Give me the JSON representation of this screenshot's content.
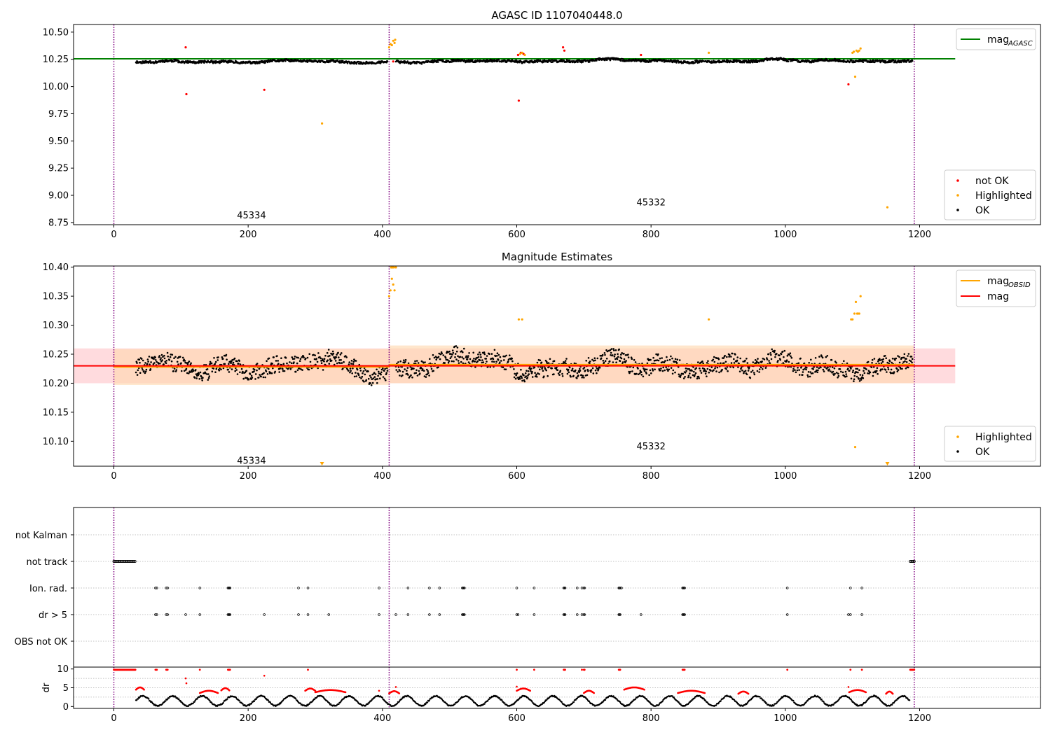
{
  "colors": {
    "ok": "#000000",
    "not_ok": "#ff0000",
    "highlighted": "#ffa500",
    "mag_agasc_line": "#008000",
    "mag_obsid_line": "#ffa500",
    "mag_line": "#ff0000",
    "obs_separator": "#800080",
    "band_obsid": "#ffd8b0",
    "band_mag": "#ffc8cc"
  },
  "chart_data": [
    {
      "id": "agasc",
      "type": "scatter",
      "title": "AGASC ID 1107040448.0",
      "xlabel": "",
      "ylabel": "",
      "xlim": [
        -60,
        1380
      ],
      "ylim": [
        8.73,
        10.57
      ],
      "xticks": [
        0,
        200,
        400,
        600,
        800,
        1000,
        1200
      ],
      "xtick_labels": [
        "0",
        "200",
        "400",
        "600",
        "800",
        "1000",
        "1200"
      ],
      "yticks": [
        8.75,
        9.0,
        9.25,
        9.5,
        9.75,
        10.0,
        10.25,
        10.5
      ],
      "ytick_labels": [
        "8.75",
        "9.00",
        "9.25",
        "9.50",
        "9.75",
        "10.00",
        "10.25",
        "10.50"
      ],
      "grid": false,
      "legend_lines": [
        {
          "name": "mag",
          "sub": "AGASC",
          "color": "#008000"
        }
      ],
      "legend_lines_placement": "top-right",
      "legend_markers": [
        {
          "name": "not OK",
          "color": "#ff0000"
        },
        {
          "name": "Highlighted",
          "color": "#ffa500"
        },
        {
          "name": "OK",
          "color": "#000000"
        }
      ],
      "legend_markers_placement": "bottom-right",
      "hlines": [
        {
          "name": "mag_AGASC",
          "y": 10.255,
          "x0": -60,
          "x1": 1253,
          "color": "#008000"
        }
      ],
      "vlines": [
        0,
        410,
        1192
      ],
      "obsid_labels": [
        {
          "text": "45334",
          "x": 205,
          "y": 8.82
        },
        {
          "text": "45332",
          "x": 800,
          "y": 8.94
        }
      ],
      "series": [
        {
          "name": "not OK",
          "color": "#ff0000",
          "points": [
            [
              107,
              10.36
            ],
            [
              108,
              9.93
            ],
            [
              224,
              9.97
            ],
            [
              416,
              10.23
            ],
            [
              602,
              10.29
            ],
            [
              603,
              9.87
            ],
            [
              606,
              10.31
            ],
            [
              610,
              10.3
            ],
            [
              669,
              10.36
            ],
            [
              671,
              10.33
            ],
            [
              785,
              10.29
            ],
            [
              1094,
              10.02
            ]
          ]
        },
        {
          "name": "Highlighted",
          "color": "#ffa500",
          "points": [
            [
              310,
              9.66
            ],
            [
              410,
              10.36
            ],
            [
              412,
              10.39
            ],
            [
              414,
              10.38
            ],
            [
              416,
              10.42
            ],
            [
              418,
              10.4
            ],
            [
              419,
              10.43
            ],
            [
              605,
              10.3
            ],
            [
              608,
              10.31
            ],
            [
              612,
              10.29
            ],
            [
              886,
              10.31
            ],
            [
              1100,
              10.31
            ],
            [
              1102,
              10.32
            ],
            [
              1104,
              10.09
            ],
            [
              1106,
              10.33
            ],
            [
              1108,
              10.32
            ],
            [
              1110,
              10.33
            ],
            [
              1112,
              10.35
            ],
            [
              1152,
              8.89
            ]
          ]
        }
      ],
      "ok_segments": [
        {
          "x0": 33,
          "x1": 408,
          "level": 10.225,
          "noise": 0.02,
          "seed": 11
        },
        {
          "x0": 420,
          "x1": 1190,
          "level": 10.235,
          "noise": 0.02,
          "seed": 23
        }
      ]
    },
    {
      "id": "magnitude",
      "type": "scatter",
      "title": "Magnitude Estimates",
      "xlabel": "",
      "ylabel": "",
      "xlim": [
        -60,
        1380
      ],
      "ylim": [
        10.057,
        10.402
      ],
      "xticks": [
        0,
        200,
        400,
        600,
        800,
        1000,
        1200
      ],
      "xtick_labels": [
        "0",
        "200",
        "400",
        "600",
        "800",
        "1000",
        "1200"
      ],
      "yticks": [
        10.1,
        10.15,
        10.2,
        10.25,
        10.3,
        10.35,
        10.4
      ],
      "ytick_labels": [
        "10.10",
        "10.15",
        "10.20",
        "10.25",
        "10.30",
        "10.35",
        "10.40"
      ],
      "grid": false,
      "legend_lines": [
        {
          "name": "mag",
          "sub": "OBSID",
          "color": "#ffa500"
        },
        {
          "name": "mag",
          "sub": "",
          "color": "#ff0000"
        }
      ],
      "legend_lines_placement": "top-right",
      "legend_markers": [
        {
          "name": "Highlighted",
          "color": "#ffa500"
        },
        {
          "name": "OK",
          "color": "#000000"
        }
      ],
      "legend_markers_placement": "bottom-right",
      "hlines": [
        {
          "name": "mag_OBSID first",
          "y": 10.228,
          "x0": 0,
          "x1": 410,
          "color": "#ffa500"
        },
        {
          "name": "mag_OBSID second",
          "y": 10.232,
          "x0": 410,
          "x1": 1192,
          "color": "#ffa500"
        },
        {
          "name": "mag",
          "y": 10.23,
          "x0": -60,
          "x1": 1253,
          "color": "#ff0000"
        }
      ],
      "bands": [
        {
          "name": "mag",
          "y0": 10.2,
          "y1": 10.26,
          "x0": -60,
          "x1": 1253,
          "color": "#ffc8cc"
        },
        {
          "name": "mag_OBSID first",
          "y0": 10.197,
          "y1": 10.259,
          "x0": 0,
          "x1": 410,
          "color": "#ffd8b0"
        },
        {
          "name": "mag_OBSID second",
          "y0": 10.2,
          "y1": 10.265,
          "x0": 410,
          "x1": 1192,
          "color": "#ffd8b0"
        }
      ],
      "vlines": [
        0,
        410,
        1192
      ],
      "obsid_labels": [
        {
          "text": "45334",
          "x": 205,
          "y": 10.067
        },
        {
          "text": "45332",
          "x": 800,
          "y": 10.092
        }
      ],
      "series": [
        {
          "name": "Highlighted",
          "color": "#ffa500",
          "points": [
            [
              410,
              10.35
            ],
            [
              412,
              10.36
            ],
            [
              413,
              10.4
            ],
            [
              414,
              10.38
            ],
            [
              415,
              10.4
            ],
            [
              416,
              10.37
            ],
            [
              417,
              10.4
            ],
            [
              418,
              10.36
            ],
            [
              420,
              10.4
            ],
            [
              603,
              10.31
            ],
            [
              608,
              10.31
            ],
            [
              886,
              10.31
            ],
            [
              1098,
              10.31
            ],
            [
              1100,
              10.31
            ],
            [
              1103,
              10.32
            ],
            [
              1104,
              10.09
            ],
            [
              1105,
              10.34
            ],
            [
              1107,
              10.32
            ],
            [
              1108,
              10.32
            ],
            [
              1110,
              10.32
            ],
            [
              1112,
              10.35
            ]
          ]
        }
      ],
      "offscale_markers": [
        {
          "x": 310,
          "y": 10.06,
          "color": "#ffa500"
        },
        {
          "x": 1152,
          "y": 10.06,
          "color": "#ffa500"
        }
      ],
      "ok_segments": [
        {
          "x0": 33,
          "x1": 408,
          "level": 10.228,
          "noise": 0.028,
          "seed": 31
        },
        {
          "x0": 420,
          "x1": 1190,
          "level": 10.232,
          "noise": 0.028,
          "seed": 47
        }
      ]
    },
    {
      "id": "flags",
      "type": "scatter",
      "title": "",
      "xlabel": "",
      "ylabel": "",
      "xlim": [
        -60,
        1380
      ],
      "categories": [
        "not Kalman",
        "not track",
        "Ion. rad.",
        "dr > 5",
        "OBS not OK"
      ],
      "grid": true,
      "vlines": [
        0,
        410,
        1192
      ],
      "flag_points": {
        "not track": [
          [
            0,
            32
          ],
          [
            1186,
            1192
          ]
        ],
        "Ion. rad.": [
          62,
          64,
          78,
          80,
          128,
          170,
          171,
          172,
          173,
          275,
          289,
          395,
          438,
          470,
          485,
          519,
          520,
          521,
          522,
          600,
          626,
          670,
          671,
          672,
          690,
          697,
          700,
          701,
          752,
          753,
          754,
          756,
          847,
          848,
          849,
          850,
          1003,
          1097,
          1114
        ],
        "dr > 5": [
          62,
          64,
          78,
          80,
          107,
          128,
          170,
          171,
          172,
          173,
          224,
          275,
          289,
          320,
          395,
          420,
          438,
          470,
          485,
          519,
          520,
          521,
          522,
          600,
          602,
          626,
          670,
          671,
          672,
          690,
          697,
          700,
          701,
          752,
          753,
          754,
          785,
          847,
          848,
          849,
          850,
          1003,
          1094,
          1097,
          1114
        ]
      }
    },
    {
      "id": "dr",
      "type": "scatter",
      "title": "",
      "xlabel": "",
      "ylabel": "dr",
      "xlim": [
        -60,
        1380
      ],
      "ylim": [
        -0.5,
        10.5
      ],
      "xticks": [
        0,
        200,
        400,
        600,
        800,
        1000,
        1200
      ],
      "xtick_labels": [
        "0",
        "200",
        "400",
        "600",
        "800",
        "1000",
        "1200"
      ],
      "yticks": [
        0,
        5,
        10
      ],
      "ytick_labels": [
        "0",
        "5",
        "10"
      ],
      "grid": true,
      "vlines": [
        0,
        410,
        1192
      ],
      "cap_points": [
        [
          0,
          32
        ],
        [
          1186,
          1192
        ]
      ],
      "red_points": [
        62,
        64,
        78,
        80,
        128,
        170,
        171,
        172,
        173,
        289,
        600,
        626,
        670,
        671,
        672,
        697,
        700,
        701,
        752,
        753,
        754,
        847,
        848,
        849,
        850,
        1003,
        1097,
        1114
      ],
      "red_isolated": [
        [
          107,
          7.5
        ],
        [
          108,
          6.2
        ],
        [
          224,
          8.2
        ],
        [
          395,
          4.2
        ],
        [
          420,
          5.2
        ],
        [
          600,
          5.3
        ],
        [
          1094,
          5.2
        ]
      ],
      "red_arcs": [
        [
          33,
          45,
          4.5
        ],
        [
          128,
          155,
          3.6
        ],
        [
          160,
          172,
          4.3
        ],
        [
          285,
          300,
          4.2
        ],
        [
          300,
          345,
          3.8
        ],
        [
          410,
          425,
          3.5
        ],
        [
          600,
          620,
          4.2
        ],
        [
          700,
          715,
          3.6
        ],
        [
          760,
          790,
          4.5
        ],
        [
          840,
          880,
          3.6
        ],
        [
          930,
          945,
          3.4
        ],
        [
          1095,
          1120,
          3.8
        ],
        [
          1150,
          1160,
          3.4
        ]
      ]
    }
  ]
}
